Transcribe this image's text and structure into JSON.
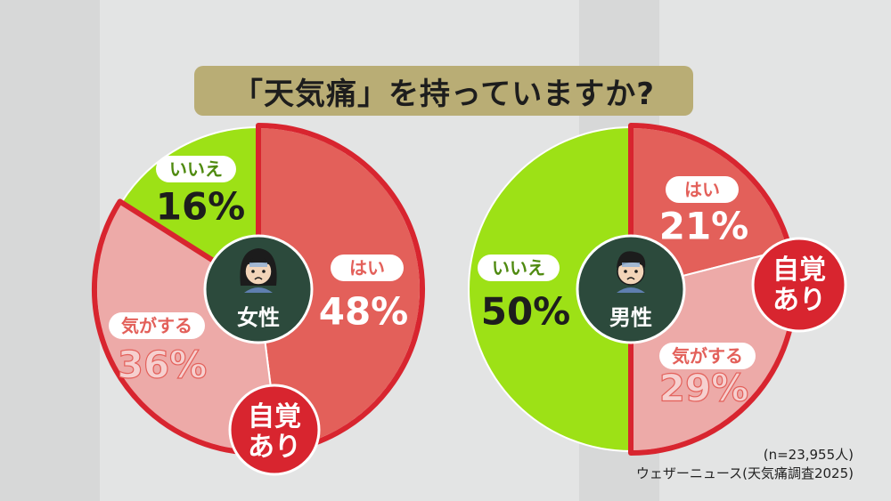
{
  "title": "「天気痛」を持っていますか?",
  "colors": {
    "hai": "#e3605a",
    "kigasuru": "#edaaa8",
    "iie": "#9de116",
    "accent_red": "#d8252f",
    "center": "#2c4a3c",
    "title_bg": "#b9ad75"
  },
  "awareness_label": "自覚\nあり",
  "sample_size": "(n=23,955人)",
  "source": "ウェザーニュース(天気痛調査2025)",
  "chart_data": [
    {
      "type": "pie",
      "center_label": "女性",
      "center_icon": "woman-face-icon",
      "slices": [
        {
          "label": "はい",
          "value": 48,
          "value_text": "48%",
          "color": "#e3605a"
        },
        {
          "label": "気がする",
          "value": 36,
          "value_text": "36%",
          "color": "#edaaa8"
        },
        {
          "label": "いいえ",
          "value": 16,
          "value_text": "16%",
          "color": "#9de116"
        }
      ]
    },
    {
      "type": "pie",
      "center_label": "男性",
      "center_icon": "man-face-icon",
      "slices": [
        {
          "label": "はい",
          "value": 21,
          "value_text": "21%",
          "color": "#e3605a"
        },
        {
          "label": "気がする",
          "value": 29,
          "value_text": "29%",
          "color": "#edaaa8"
        },
        {
          "label": "いいえ",
          "value": 50,
          "value_text": "50%",
          "color": "#9de116"
        }
      ]
    }
  ]
}
